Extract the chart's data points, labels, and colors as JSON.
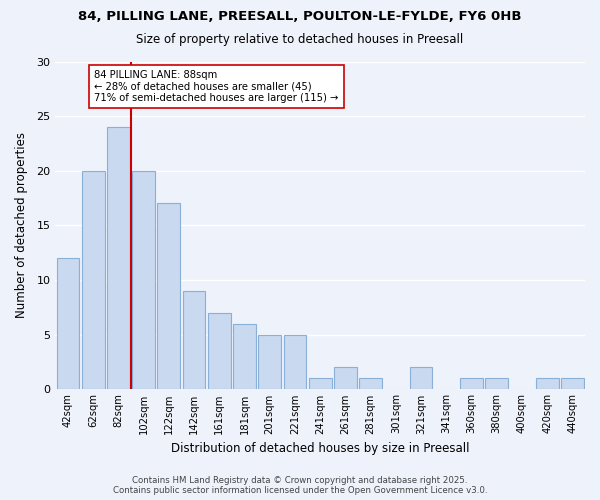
{
  "title": "84, PILLING LANE, PREESALL, POULTON-LE-FYLDE, FY6 0HB",
  "subtitle": "Size of property relative to detached houses in Preesall",
  "xlabel": "Distribution of detached houses by size in Preesall",
  "ylabel": "Number of detached properties",
  "bar_labels": [
    "42sqm",
    "62sqm",
    "82sqm",
    "102sqm",
    "122sqm",
    "142sqm",
    "161sqm",
    "181sqm",
    "201sqm",
    "221sqm",
    "241sqm",
    "261sqm",
    "281sqm",
    "301sqm",
    "321sqm",
    "341sqm",
    "360sqm",
    "380sqm",
    "400sqm",
    "420sqm",
    "440sqm"
  ],
  "bar_values": [
    12,
    20,
    24,
    20,
    17,
    9,
    7,
    6,
    5,
    5,
    1,
    2,
    1,
    0,
    2,
    0,
    1,
    1,
    0,
    1,
    1
  ],
  "bar_color": "#c8d9f0",
  "bar_edge_color": "#8ab0d8",
  "vline_pos": 2.5,
  "vline_color": "#cc0000",
  "annotation_title": "84 PILLING LANE: 88sqm",
  "annotation_line1": "← 28% of detached houses are smaller (45)",
  "annotation_line2": "71% of semi-detached houses are larger (115) →",
  "annotation_box_color": "#ffffff",
  "annotation_box_edge": "#cc0000",
  "ylim": [
    0,
    30
  ],
  "yticks": [
    0,
    5,
    10,
    15,
    20,
    25,
    30
  ],
  "footer1": "Contains HM Land Registry data © Crown copyright and database right 2025.",
  "footer2": "Contains public sector information licensed under the Open Government Licence v3.0.",
  "bg_color": "#eef2fb"
}
